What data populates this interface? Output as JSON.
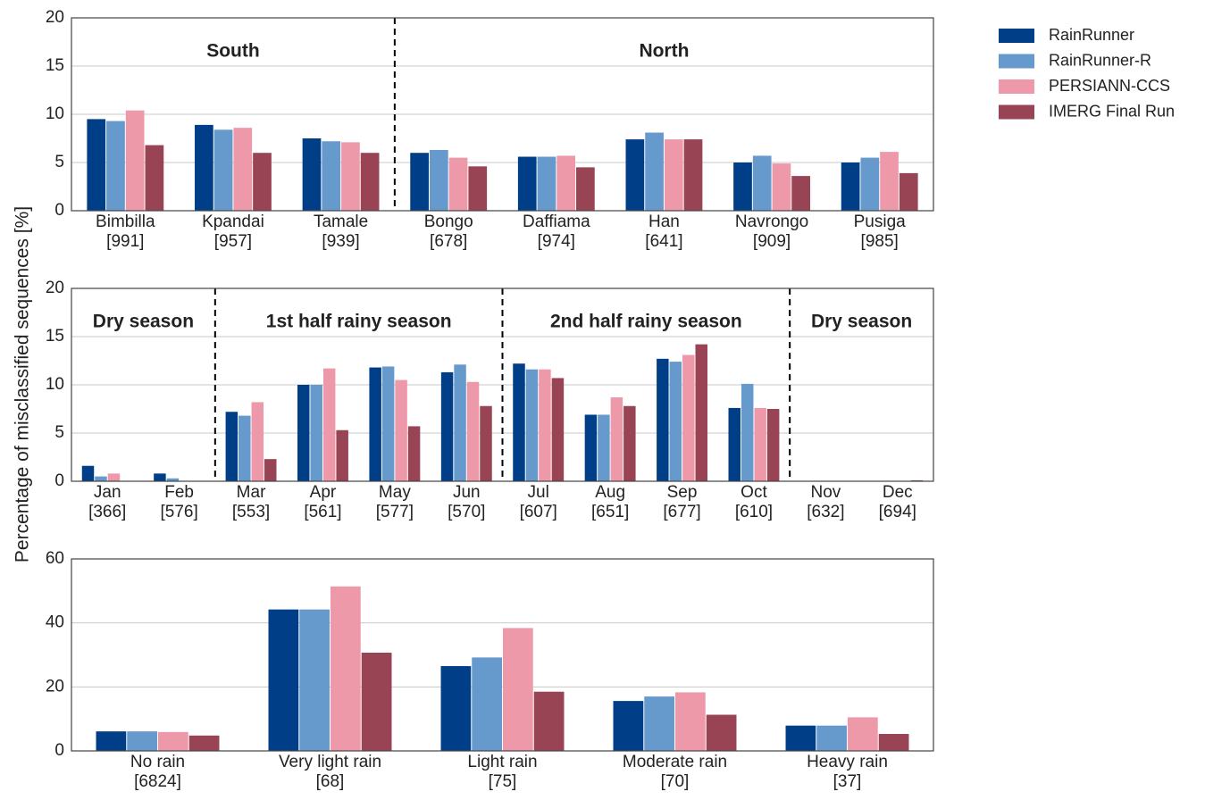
{
  "chart_data": [
    {
      "type": "bar",
      "ylim": [
        0,
        20
      ],
      "yticks": [
        0,
        5,
        10,
        15,
        20
      ],
      "grid": true,
      "categories": [
        "Bimbilla",
        "Kpandai",
        "Tamale",
        "Bongo",
        "Daffiama",
        "Han",
        "Navrongo",
        "Pusiga"
      ],
      "sample_sizes": [
        "[991]",
        "[957]",
        "[939]",
        "[678]",
        "[974]",
        "[641]",
        "[909]",
        "[985]"
      ],
      "regions": [
        {
          "label": "South",
          "from": "Bimbilla",
          "to": "Tamale"
        },
        {
          "label": "North",
          "from": "Bongo",
          "to": "Pusiga"
        }
      ],
      "legend": "outside right",
      "series": [
        {
          "name": "RainRunner",
          "color": "#003f87",
          "values": [
            9.5,
            8.9,
            7.5,
            6.0,
            5.6,
            7.4,
            5.0,
            5.0
          ]
        },
        {
          "name": "RainRunner-R",
          "color": "#6699cc",
          "values": [
            9.3,
            8.4,
            7.2,
            6.3,
            5.6,
            8.1,
            5.7,
            5.5
          ]
        },
        {
          "name": "PERSIANN-CCS",
          "color": "#ee99aa",
          "values": [
            10.4,
            8.6,
            7.1,
            5.5,
            5.7,
            7.4,
            4.9,
            6.1
          ]
        },
        {
          "name": "IMERG Final Run",
          "color": "#994455",
          "values": [
            6.8,
            6.0,
            6.0,
            4.6,
            4.5,
            7.4,
            3.6,
            3.9
          ]
        }
      ]
    },
    {
      "type": "bar",
      "ylim": [
        0,
        20
      ],
      "yticks": [
        0,
        5,
        10,
        15,
        20
      ],
      "grid": true,
      "ylabel": "Percentage of misclassified sequences [%]",
      "categories": [
        "Jan",
        "Feb",
        "Mar",
        "Apr",
        "May",
        "Jun",
        "Jul",
        "Aug",
        "Sep",
        "Oct",
        "Nov",
        "Dec"
      ],
      "sample_sizes": [
        "[366]",
        "[576]",
        "[553]",
        "[561]",
        "[577]",
        "[570]",
        "[607]",
        "[651]",
        "[677]",
        "[610]",
        "[632]",
        "[694]"
      ],
      "regions": [
        {
          "label": "Dry season",
          "from": "Jan",
          "to": "Feb"
        },
        {
          "label": "1st half rainy season",
          "from": "Mar",
          "to": "Jun"
        },
        {
          "label": "2nd half rainy season",
          "from": "Jul",
          "to": "Oct"
        },
        {
          "label": "Dry season",
          "from": "Nov",
          "to": "Dec"
        }
      ],
      "series": [
        {
          "name": "RainRunner",
          "color": "#003f87",
          "values": [
            1.6,
            0.8,
            7.2,
            10.0,
            11.8,
            11.3,
            12.2,
            6.9,
            12.7,
            7.6,
            0,
            0
          ]
        },
        {
          "name": "RainRunner-R",
          "color": "#6699cc",
          "values": [
            0.5,
            0.3,
            6.8,
            10.0,
            11.9,
            12.1,
            11.6,
            6.9,
            12.4,
            10.1,
            0,
            0
          ]
        },
        {
          "name": "PERSIANN-CCS",
          "color": "#ee99aa",
          "values": [
            0.8,
            0,
            8.2,
            11.7,
            10.5,
            10.3,
            11.6,
            8.7,
            13.1,
            7.6,
            0,
            0
          ]
        },
        {
          "name": "IMERG Final Run",
          "color": "#994455",
          "values": [
            0,
            0,
            2.3,
            5.3,
            5.7,
            7.8,
            10.7,
            7.8,
            14.2,
            7.5,
            0,
            0.1
          ]
        }
      ]
    },
    {
      "type": "bar",
      "ylim": [
        0,
        60
      ],
      "yticks": [
        0,
        20,
        40,
        60
      ],
      "grid": true,
      "categories": [
        "No rain",
        "Very light rain",
        "Light rain",
        "Moderate rain",
        "Heavy rain"
      ],
      "sample_sizes": [
        "[6824]",
        "[68]",
        "[75]",
        "[70]",
        "[37]"
      ],
      "series": [
        {
          "name": "RainRunner",
          "color": "#003f87",
          "values": [
            6.1,
            44.2,
            26.5,
            15.6,
            7.9
          ]
        },
        {
          "name": "RainRunner-R",
          "color": "#6699cc",
          "values": [
            6.1,
            44.2,
            29.2,
            17.0,
            7.9
          ]
        },
        {
          "name": "PERSIANN-CCS",
          "color": "#ee99aa",
          "values": [
            5.9,
            51.4,
            38.4,
            18.3,
            10.5
          ]
        },
        {
          "name": "IMERG Final Run",
          "color": "#994455",
          "values": [
            4.8,
            30.7,
            18.5,
            11.3,
            5.3
          ]
        }
      ]
    }
  ]
}
